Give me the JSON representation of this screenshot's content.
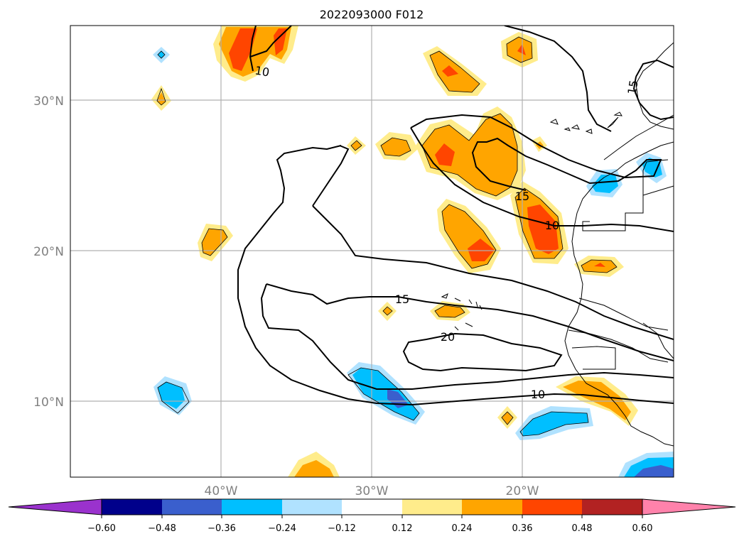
{
  "title": "2022093000 F012",
  "lat_labels": [
    "30°N",
    "20°N",
    "10°N"
  ],
  "lon_labels": [
    "40°W",
    "30°W",
    "20°W"
  ],
  "contour_labels": [
    "10",
    "15",
    "10",
    "15",
    "20",
    "10",
    "15"
  ],
  "colorbar": {
    "ticks": [
      "−0.60",
      "−0.48",
      "−0.36",
      "−0.24",
      "−0.12",
      "0.12",
      "0.24",
      "0.36",
      "0.48",
      "0.60"
    ],
    "colors": [
      "#9a32cd",
      "#00008b",
      "#3a5fcd",
      "#00bfff",
      "#b0e2ff",
      "#ffffff",
      "#ffec8b",
      "#ffa500",
      "#ff4500",
      "#b22222",
      "#ff82ab"
    ]
  },
  "colors": {
    "cold_light": "#b0e2ff",
    "cold_mid": "#00bfff",
    "cold_dark": "#3a5fcd",
    "warm_light": "#ffec8b",
    "warm_mid": "#ffa500",
    "warm_dark": "#ff4500"
  }
}
